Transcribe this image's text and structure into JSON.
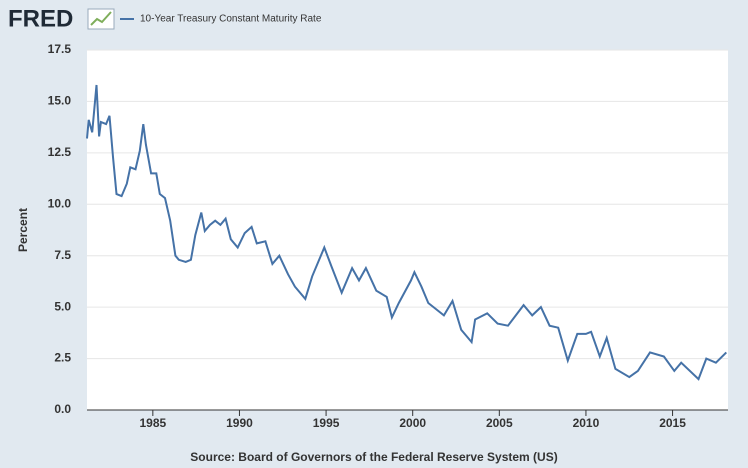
{
  "chart_data": {
    "type": "line",
    "brand": "FRED",
    "ylabel": "Percent",
    "source": "Source: Board of Governors of the Federal Reserve System (US)",
    "series": [
      {
        "name": "10-Year Treasury Constant Maturity Rate",
        "color": "#4572a7",
        "x": [
          1981.2,
          1981.3,
          1981.5,
          1981.75,
          1981.9,
          1982.0,
          1982.3,
          1982.5,
          1982.7,
          1982.9,
          1983.2,
          1983.5,
          1983.7,
          1984.0,
          1984.25,
          1984.45,
          1984.6,
          1984.9,
          1985.2,
          1985.4,
          1985.7,
          1986.0,
          1986.3,
          1986.5,
          1986.9,
          1987.2,
          1987.45,
          1987.8,
          1988.0,
          1988.3,
          1988.6,
          1988.9,
          1989.2,
          1989.5,
          1989.9,
          1990.3,
          1990.7,
          1991.0,
          1991.5,
          1991.9,
          1992.3,
          1992.8,
          1993.2,
          1993.8,
          1994.2,
          1994.9,
          1995.3,
          1995.9,
          1996.5,
          1996.9,
          1997.3,
          1997.9,
          1998.5,
          1998.8,
          1999.2,
          1999.9,
          2000.1,
          2000.5,
          2000.9,
          2001.2,
          2001.8,
          2002.3,
          2002.8,
          2003.4,
          2003.6,
          2004.3,
          2004.9,
          2005.5,
          2006.4,
          2006.9,
          2007.4,
          2007.9,
          2008.4,
          2008.95,
          2009.5,
          2010.0,
          2010.3,
          2010.8,
          2011.2,
          2011.7,
          2012.5,
          2013.0,
          2013.7,
          2014.5,
          2015.1,
          2015.5,
          2016.5,
          2016.95,
          2017.5,
          2018.1
        ],
        "values": [
          13.2,
          14.1,
          13.5,
          15.8,
          13.3,
          14.0,
          13.9,
          14.3,
          12.3,
          10.5,
          10.4,
          11.0,
          11.8,
          11.7,
          12.6,
          13.9,
          12.9,
          11.5,
          11.5,
          10.5,
          10.3,
          9.2,
          7.5,
          7.3,
          7.2,
          7.3,
          8.5,
          9.6,
          8.7,
          9.0,
          9.2,
          9.0,
          9.3,
          8.3,
          7.9,
          8.6,
          8.9,
          8.1,
          8.2,
          7.1,
          7.5,
          6.6,
          6.0,
          5.4,
          6.5,
          7.9,
          7.0,
          5.7,
          6.9,
          6.3,
          6.9,
          5.8,
          5.5,
          4.5,
          5.2,
          6.3,
          6.7,
          6.0,
          5.2,
          5.0,
          4.6,
          5.3,
          3.9,
          3.3,
          4.4,
          4.7,
          4.2,
          4.1,
          5.1,
          4.6,
          5.0,
          4.1,
          4.0,
          2.4,
          3.7,
          3.7,
          3.8,
          2.6,
          3.5,
          2.0,
          1.6,
          1.9,
          2.8,
          2.6,
          1.9,
          2.3,
          1.5,
          2.5,
          2.3,
          2.8
        ]
      }
    ],
    "xlim": [
      1981.2,
      2018.2
    ],
    "xticks": [
      1985,
      1990,
      1995,
      2000,
      2005,
      2010,
      2015
    ],
    "ylim": [
      0,
      17.5
    ],
    "yticks": [
      {
        "value": 0,
        "label": "0.0"
      },
      2.5,
      {
        "value": 5,
        "label": "5.0"
      },
      7.5,
      {
        "value": 10,
        "label": "10.0"
      },
      12.5,
      {
        "value": 15,
        "label": "15.0"
      },
      17.5
    ],
    "grid": true
  }
}
